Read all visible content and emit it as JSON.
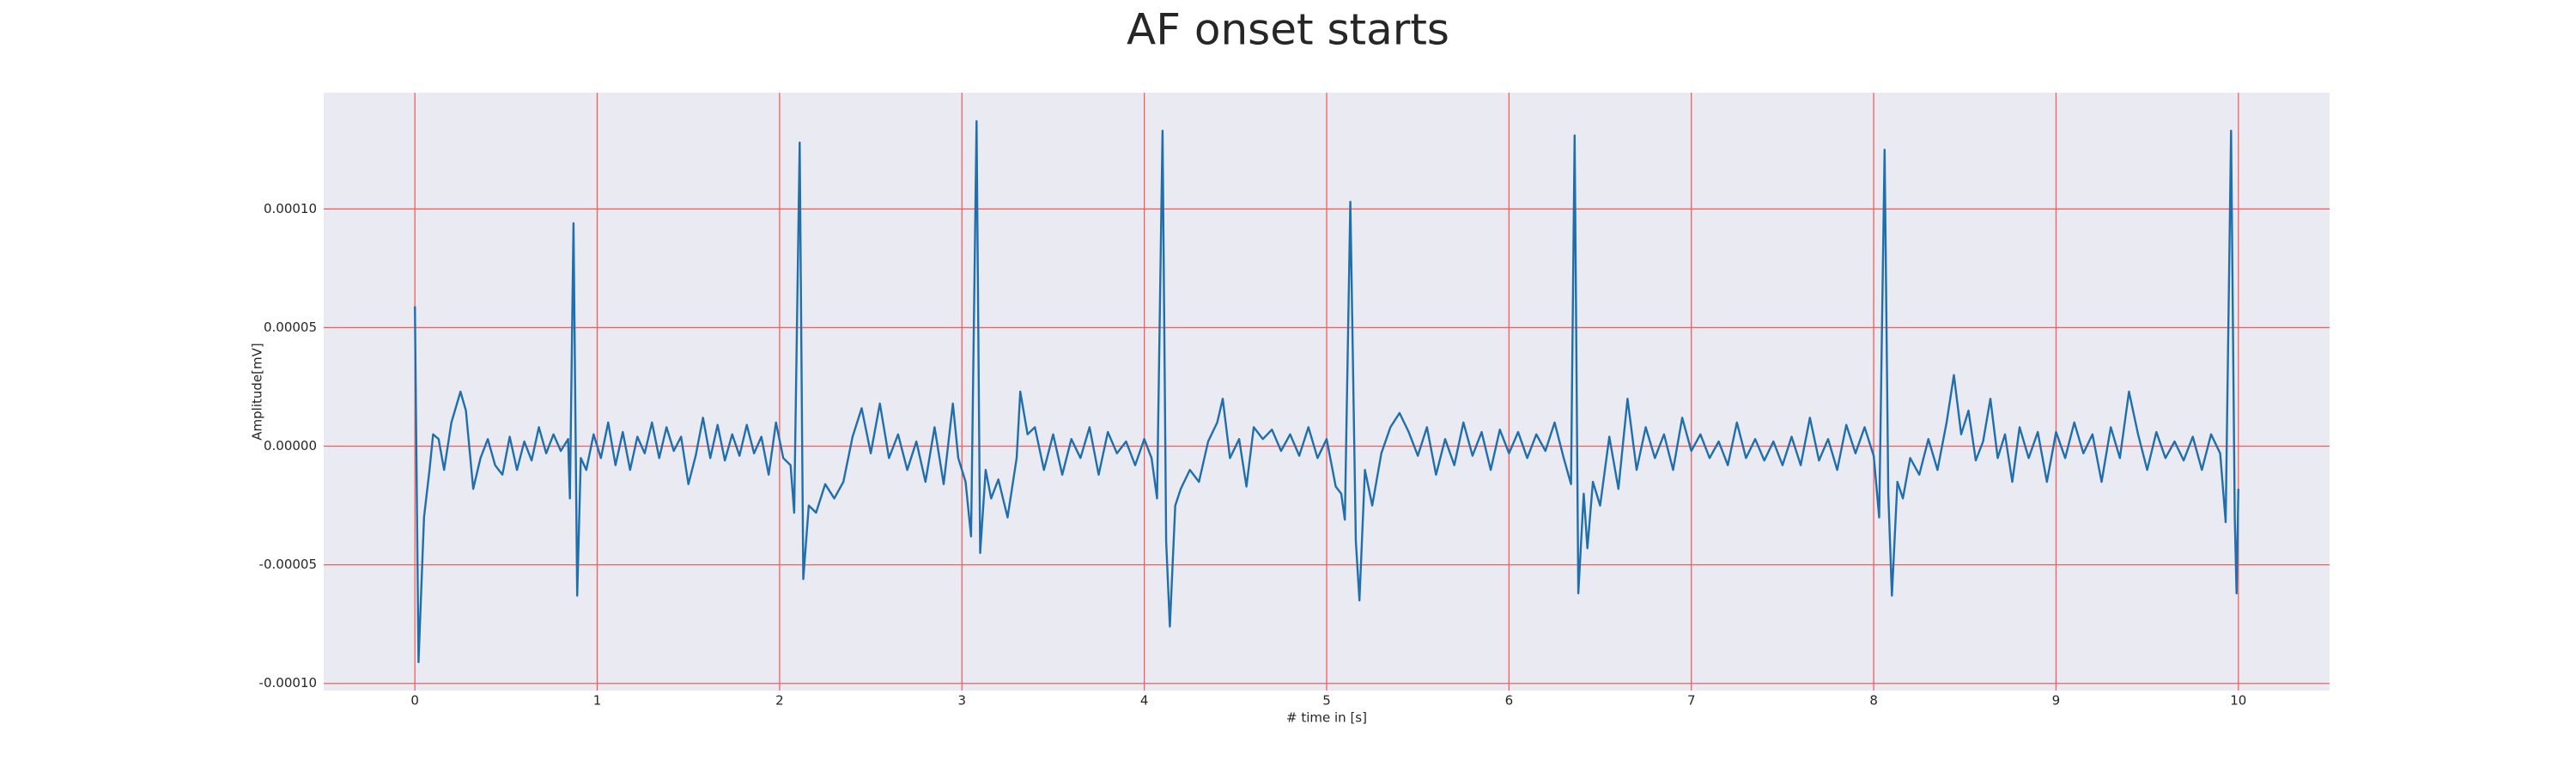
{
  "chart_data": {
    "type": "line",
    "title": "AF onset starts",
    "xlabel": "# time in [s]",
    "ylabel": "Amplitude[mV]",
    "color": "#1f6fad",
    "grid": true,
    "grid_color": "#f06060",
    "background": "#eaeaf2",
    "xlim": [
      -0.5,
      10.5
    ],
    "ylim": [
      -0.000103,
      0.000149
    ],
    "xticks": [
      0,
      1,
      2,
      3,
      4,
      5,
      6,
      7,
      8,
      9,
      10
    ],
    "yticks": [
      {
        "value": -0.0001,
        "label": "-0.00010"
      },
      {
        "value": -5e-05,
        "label": "-0.00005"
      },
      {
        "value": 0,
        "label": "0.00000"
      },
      {
        "value": 5e-05,
        "label": "0.00005"
      },
      {
        "value": 0.0001,
        "label": "0.00010"
      }
    ],
    "x": [
      0.0,
      0.02,
      0.05,
      0.08,
      0.1,
      0.13,
      0.16,
      0.2,
      0.25,
      0.28,
      0.32,
      0.36,
      0.4,
      0.44,
      0.48,
      0.52,
      0.56,
      0.6,
      0.64,
      0.68,
      0.72,
      0.76,
      0.8,
      0.84,
      0.85,
      0.87,
      0.89,
      0.91,
      0.94,
      0.98,
      1.02,
      1.06,
      1.1,
      1.14,
      1.18,
      1.22,
      1.26,
      1.3,
      1.34,
      1.38,
      1.42,
      1.46,
      1.5,
      1.54,
      1.58,
      1.62,
      1.66,
      1.7,
      1.74,
      1.78,
      1.82,
      1.86,
      1.9,
      1.94,
      1.98,
      2.02,
      2.06,
      2.08,
      2.11,
      2.13,
      2.16,
      2.2,
      2.25,
      2.3,
      2.35,
      2.4,
      2.45,
      2.5,
      2.55,
      2.6,
      2.65,
      2.7,
      2.75,
      2.8,
      2.85,
      2.9,
      2.95,
      2.98,
      3.02,
      3.05,
      3.08,
      3.1,
      3.13,
      3.16,
      3.2,
      3.25,
      3.3,
      3.32,
      3.36,
      3.4,
      3.45,
      3.5,
      3.55,
      3.6,
      3.65,
      3.7,
      3.75,
      3.8,
      3.85,
      3.9,
      3.95,
      4.0,
      4.04,
      4.07,
      4.1,
      4.12,
      4.14,
      4.17,
      4.2,
      4.25,
      4.3,
      4.35,
      4.4,
      4.43,
      4.47,
      4.52,
      4.56,
      4.6,
      4.65,
      4.7,
      4.75,
      4.8,
      4.85,
      4.9,
      4.95,
      5.0,
      5.05,
      5.08,
      5.1,
      5.13,
      5.16,
      5.18,
      5.21,
      5.25,
      5.3,
      5.35,
      5.4,
      5.45,
      5.5,
      5.55,
      5.6,
      5.65,
      5.7,
      5.75,
      5.8,
      5.85,
      5.9,
      5.95,
      6.0,
      6.05,
      6.1,
      6.15,
      6.2,
      6.25,
      6.3,
      6.34,
      6.36,
      6.38,
      6.41,
      6.43,
      6.46,
      6.5,
      6.55,
      6.6,
      6.65,
      6.7,
      6.75,
      6.8,
      6.85,
      6.9,
      6.95,
      7.0,
      7.05,
      7.1,
      7.15,
      7.2,
      7.25,
      7.3,
      7.35,
      7.4,
      7.45,
      7.5,
      7.55,
      7.6,
      7.65,
      7.7,
      7.75,
      7.8,
      7.85,
      7.9,
      7.95,
      8.0,
      8.03,
      8.06,
      8.08,
      8.1,
      8.13,
      8.16,
      8.2,
      8.25,
      8.3,
      8.35,
      8.4,
      8.44,
      8.48,
      8.52,
      8.56,
      8.6,
      8.64,
      8.68,
      8.72,
      8.76,
      8.8,
      8.85,
      8.9,
      8.95,
      9.0,
      9.05,
      9.1,
      9.15,
      9.2,
      9.25,
      9.3,
      9.35,
      9.4,
      9.45,
      9.5,
      9.55,
      9.6,
      9.65,
      9.7,
      9.75,
      9.8,
      9.85,
      9.9,
      9.93,
      9.96,
      9.98,
      9.99,
      10.0
    ],
    "values": [
      5.9e-05,
      -9.1e-05,
      -3e-05,
      -1e-05,
      5e-06,
      3e-06,
      -1e-05,
      1e-05,
      2.3e-05,
      1.5e-05,
      -1.8e-05,
      -5e-06,
      3e-06,
      -8e-06,
      -1.2e-05,
      4e-06,
      -1e-05,
      2e-06,
      -6e-06,
      8e-06,
      -3e-06,
      5e-06,
      -2e-06,
      3e-06,
      -2.2e-05,
      9.4e-05,
      -6.3e-05,
      -5e-06,
      -1e-05,
      5e-06,
      -5e-06,
      1e-05,
      -8e-06,
      6e-06,
      -1e-05,
      4e-06,
      -3e-06,
      1e-05,
      -5e-06,
      8e-06,
      -2e-06,
      4e-06,
      -1.6e-05,
      -4e-06,
      1.2e-05,
      -5e-06,
      9e-06,
      -6e-06,
      5e-06,
      -4e-06,
      9e-06,
      -3e-06,
      4e-06,
      -1.2e-05,
      1e-05,
      -5e-06,
      -8e-06,
      -2.8e-05,
      0.000128,
      -5.6e-05,
      -2.5e-05,
      -2.8e-05,
      -1.6e-05,
      -2.2e-05,
      -1.5e-05,
      4e-06,
      1.6e-05,
      -3e-06,
      1.8e-05,
      -5e-06,
      5e-06,
      -1e-05,
      2e-06,
      -1.5e-05,
      8e-06,
      -1.6e-05,
      1.8e-05,
      -5e-06,
      -1.5e-05,
      -3.8e-05,
      0.000137,
      -4.5e-05,
      -1e-05,
      -2.2e-05,
      -1.4e-05,
      -3e-05,
      -5e-06,
      2.3e-05,
      5e-06,
      8e-06,
      -1e-05,
      5e-06,
      -1.2e-05,
      3e-06,
      -5e-06,
      8e-06,
      -1.2e-05,
      6e-06,
      -3e-06,
      2e-06,
      -8e-06,
      3e-06,
      -5e-06,
      -2.2e-05,
      0.000133,
      -4e-05,
      -7.6e-05,
      -2.5e-05,
      -1.8e-05,
      -1e-05,
      -1.5e-05,
      2e-06,
      1e-05,
      2e-05,
      -5e-06,
      3e-06,
      -1.7e-05,
      8e-06,
      3e-06,
      7e-06,
      -2e-06,
      5e-06,
      -4e-06,
      8e-06,
      -5e-06,
      3e-06,
      -1.7e-05,
      -2e-05,
      -3.1e-05,
      0.000103,
      -4e-05,
      -6.5e-05,
      -1e-05,
      -2.5e-05,
      -3e-06,
      8e-06,
      1.4e-05,
      6e-06,
      -4e-06,
      8e-06,
      -1.2e-05,
      3e-06,
      -8e-06,
      1e-05,
      -4e-06,
      6e-06,
      -1e-05,
      7e-06,
      -3e-06,
      6e-06,
      -5e-06,
      5e-06,
      -2e-06,
      1e-05,
      -5e-06,
      -1.6e-05,
      0.000131,
      -6.2e-05,
      -2e-05,
      -4.3e-05,
      -1.5e-05,
      -2.5e-05,
      4e-06,
      -1.8e-05,
      2e-05,
      -1e-05,
      8e-06,
      -5e-06,
      5e-06,
      -1e-05,
      1.2e-05,
      -2e-06,
      5e-06,
      -5e-06,
      2e-06,
      -8e-06,
      1e-05,
      -5e-06,
      3e-06,
      -6e-06,
      2e-06,
      -8e-06,
      4e-06,
      -8e-06,
      1.2e-05,
      -6e-06,
      3e-06,
      -1e-05,
      9e-06,
      -3e-06,
      8e-06,
      -4e-06,
      -3e-05,
      0.000125,
      -2e-05,
      -6.3e-05,
      -1.5e-05,
      -2.2e-05,
      -5e-06,
      -1.2e-05,
      3e-06,
      -1e-05,
      1e-05,
      3e-05,
      5e-06,
      1.5e-05,
      -6e-06,
      2e-06,
      2e-05,
      -5e-06,
      5e-06,
      -1.5e-05,
      8e-06,
      -5e-06,
      6e-06,
      -1.5e-05,
      6e-06,
      -5e-06,
      1e-05,
      -3e-06,
      5e-06,
      -1.5e-05,
      8e-06,
      -5e-06,
      2.3e-05,
      5e-06,
      -1e-05,
      6e-06,
      -5e-06,
      2e-06,
      -6e-06,
      4e-06,
      -1e-05,
      5e-06,
      -3e-06,
      -3.2e-05,
      0.000133,
      -3e-05,
      -6.2e-05,
      -1.8e-05
    ]
  }
}
